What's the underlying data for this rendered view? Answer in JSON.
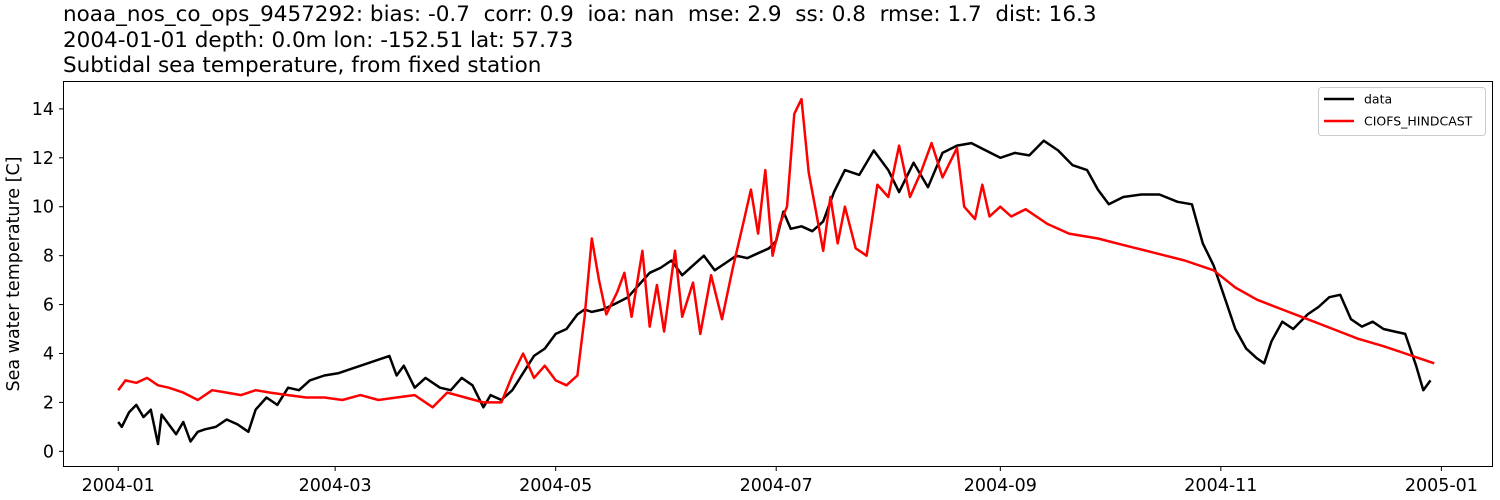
{
  "title_lines": [
    "noaa_nos_co_ops_9457292: bias: -0.7  corr: 0.9  ioa: nan  mse: 2.9  ss: 0.8  rmse: 1.7  dist: 16.3",
    "2004-01-01 depth: 0.0m lon: -152.51 lat: 57.73",
    "Subtidal sea temperature, from fixed station"
  ],
  "chart_data": {
    "type": "line",
    "title": "noaa_nos_co_ops_9457292: bias: -0.7  corr: 0.9  ioa: nan  mse: 2.9  ss: 0.8  rmse: 1.7  dist: 16.3",
    "subtitle": [
      "2004-01-01 depth: 0.0m lon: -152.51 lat: 57.73",
      "Subtidal sea temperature, from fixed station"
    ],
    "xlabel": "",
    "ylabel": "Sea water temperature [C]",
    "x_type": "date",
    "xlim": [
      "2003-12-17",
      "2005-01-15"
    ],
    "ylim": [
      -0.6,
      15.1
    ],
    "x_ticks": [
      "2004-01",
      "2004-03",
      "2004-05",
      "2004-07",
      "2004-09",
      "2004-11",
      "2005-01"
    ],
    "x_tick_dates": [
      "2004-01-01",
      "2004-03-01",
      "2004-05-01",
      "2004-07-01",
      "2004-09-01",
      "2004-11-01",
      "2005-01-01"
    ],
    "y_ticks": [
      0,
      2,
      4,
      6,
      8,
      10,
      12,
      14
    ],
    "grid": false,
    "legend_position": "top-right",
    "series": [
      {
        "name": "data",
        "color": "#000000",
        "points": [
          [
            "2004-01-01",
            1.2
          ],
          [
            "2004-01-02",
            1.0
          ],
          [
            "2004-01-04",
            1.6
          ],
          [
            "2004-01-06",
            1.9
          ],
          [
            "2004-01-08",
            1.4
          ],
          [
            "2004-01-10",
            1.7
          ],
          [
            "2004-01-12",
            0.3
          ],
          [
            "2004-01-13",
            1.5
          ],
          [
            "2004-01-15",
            1.1
          ],
          [
            "2004-01-17",
            0.7
          ],
          [
            "2004-01-19",
            1.2
          ],
          [
            "2004-01-21",
            0.4
          ],
          [
            "2004-01-23",
            0.8
          ],
          [
            "2004-01-25",
            0.9
          ],
          [
            "2004-01-28",
            1.0
          ],
          [
            "2004-01-31",
            1.3
          ],
          [
            "2004-02-03",
            1.1
          ],
          [
            "2004-02-06",
            0.8
          ],
          [
            "2004-02-08",
            1.7
          ],
          [
            "2004-02-11",
            2.2
          ],
          [
            "2004-02-14",
            1.9
          ],
          [
            "2004-02-17",
            2.6
          ],
          [
            "2004-02-20",
            2.5
          ],
          [
            "2004-02-23",
            2.9
          ],
          [
            "2004-02-27",
            3.1
          ],
          [
            "2004-03-02",
            3.2
          ],
          [
            "2004-03-06",
            3.4
          ],
          [
            "2004-03-10",
            3.6
          ],
          [
            "2004-03-14",
            3.8
          ],
          [
            "2004-03-16",
            3.9
          ],
          [
            "2004-03-18",
            3.1
          ],
          [
            "2004-03-20",
            3.5
          ],
          [
            "2004-03-23",
            2.6
          ],
          [
            "2004-03-26",
            3.0
          ],
          [
            "2004-03-30",
            2.6
          ],
          [
            "2004-04-02",
            2.5
          ],
          [
            "2004-04-05",
            3.0
          ],
          [
            "2004-04-08",
            2.7
          ],
          [
            "2004-04-11",
            1.8
          ],
          [
            "2004-04-13",
            2.3
          ],
          [
            "2004-04-16",
            2.1
          ],
          [
            "2004-04-19",
            2.5
          ],
          [
            "2004-04-22",
            3.2
          ],
          [
            "2004-04-25",
            3.9
          ],
          [
            "2004-04-28",
            4.2
          ],
          [
            "2004-05-01",
            4.8
          ],
          [
            "2004-05-04",
            5.0
          ],
          [
            "2004-05-07",
            5.6
          ],
          [
            "2004-05-09",
            5.8
          ],
          [
            "2004-05-11",
            5.7
          ],
          [
            "2004-05-14",
            5.8
          ],
          [
            "2004-05-17",
            6.0
          ],
          [
            "2004-05-21",
            6.3
          ],
          [
            "2004-05-24",
            6.8
          ],
          [
            "2004-05-27",
            7.3
          ],
          [
            "2004-05-30",
            7.5
          ],
          [
            "2004-06-02",
            7.8
          ],
          [
            "2004-06-05",
            7.2
          ],
          [
            "2004-06-08",
            7.6
          ],
          [
            "2004-06-11",
            8.0
          ],
          [
            "2004-06-14",
            7.4
          ],
          [
            "2004-06-17",
            7.7
          ],
          [
            "2004-06-20",
            8.0
          ],
          [
            "2004-06-23",
            7.9
          ],
          [
            "2004-06-26",
            8.1
          ],
          [
            "2004-06-29",
            8.3
          ],
          [
            "2004-07-01",
            8.6
          ],
          [
            "2004-07-03",
            9.8
          ],
          [
            "2004-07-05",
            9.1
          ],
          [
            "2004-07-08",
            9.2
          ],
          [
            "2004-07-11",
            9.0
          ],
          [
            "2004-07-14",
            9.4
          ],
          [
            "2004-07-17",
            10.6
          ],
          [
            "2004-07-20",
            11.5
          ],
          [
            "2004-07-24",
            11.3
          ],
          [
            "2004-07-28",
            12.3
          ],
          [
            "2004-08-01",
            11.5
          ],
          [
            "2004-08-04",
            10.6
          ],
          [
            "2004-08-08",
            11.8
          ],
          [
            "2004-08-12",
            10.8
          ],
          [
            "2004-08-16",
            12.2
          ],
          [
            "2004-08-20",
            12.5
          ],
          [
            "2004-08-24",
            12.6
          ],
          [
            "2004-08-28",
            12.3
          ],
          [
            "2004-09-01",
            12.0
          ],
          [
            "2004-09-05",
            12.2
          ],
          [
            "2004-09-09",
            12.1
          ],
          [
            "2004-09-13",
            12.7
          ],
          [
            "2004-09-17",
            12.3
          ],
          [
            "2004-09-21",
            11.7
          ],
          [
            "2004-09-25",
            11.5
          ],
          [
            "2004-09-28",
            10.7
          ],
          [
            "2004-10-01",
            10.1
          ],
          [
            "2004-10-05",
            10.4
          ],
          [
            "2004-10-10",
            10.5
          ],
          [
            "2004-10-15",
            10.5
          ],
          [
            "2004-10-20",
            10.2
          ],
          [
            "2004-10-24",
            10.1
          ],
          [
            "2004-10-27",
            8.5
          ],
          [
            "2004-10-30",
            7.6
          ],
          [
            "2004-11-02",
            6.3
          ],
          [
            "2004-11-05",
            5.0
          ],
          [
            "2004-11-08",
            4.2
          ],
          [
            "2004-11-11",
            3.8
          ],
          [
            "2004-11-13",
            3.6
          ],
          [
            "2004-11-15",
            4.5
          ],
          [
            "2004-11-18",
            5.3
          ],
          [
            "2004-11-21",
            5.0
          ],
          [
            "2004-11-25",
            5.6
          ],
          [
            "2004-11-28",
            5.9
          ],
          [
            "2004-12-01",
            6.3
          ],
          [
            "2004-12-04",
            6.4
          ],
          [
            "2004-12-07",
            5.4
          ],
          [
            "2004-12-10",
            5.1
          ],
          [
            "2004-12-13",
            5.3
          ],
          [
            "2004-12-16",
            5.0
          ],
          [
            "2004-12-19",
            4.9
          ],
          [
            "2004-12-22",
            4.8
          ],
          [
            "2004-12-25",
            3.5
          ],
          [
            "2004-12-27",
            2.5
          ],
          [
            "2004-12-29",
            2.9
          ]
        ]
      },
      {
        "name": "CIOFS_HINDCAST",
        "color": "#ff0000",
        "points": [
          [
            "2004-01-01",
            2.5
          ],
          [
            "2004-01-03",
            2.9
          ],
          [
            "2004-01-06",
            2.8
          ],
          [
            "2004-01-09",
            3.0
          ],
          [
            "2004-01-12",
            2.7
          ],
          [
            "2004-01-15",
            2.6
          ],
          [
            "2004-01-19",
            2.4
          ],
          [
            "2004-01-23",
            2.1
          ],
          [
            "2004-01-27",
            2.5
          ],
          [
            "2004-01-31",
            2.4
          ],
          [
            "2004-02-04",
            2.3
          ],
          [
            "2004-02-08",
            2.5
          ],
          [
            "2004-02-12",
            2.4
          ],
          [
            "2004-02-17",
            2.3
          ],
          [
            "2004-02-22",
            2.2
          ],
          [
            "2004-02-27",
            2.2
          ],
          [
            "2004-03-03",
            2.1
          ],
          [
            "2004-03-08",
            2.3
          ],
          [
            "2004-03-13",
            2.1
          ],
          [
            "2004-03-18",
            2.2
          ],
          [
            "2004-03-23",
            2.3
          ],
          [
            "2004-03-28",
            1.8
          ],
          [
            "2004-04-01",
            2.4
          ],
          [
            "2004-04-06",
            2.2
          ],
          [
            "2004-04-11",
            2.0
          ],
          [
            "2004-04-16",
            2.0
          ],
          [
            "2004-04-19",
            3.1
          ],
          [
            "2004-04-22",
            4.0
          ],
          [
            "2004-04-25",
            3.0
          ],
          [
            "2004-04-28",
            3.5
          ],
          [
            "2004-05-01",
            2.9
          ],
          [
            "2004-05-04",
            2.7
          ],
          [
            "2004-05-07",
            3.1
          ],
          [
            "2004-05-09",
            5.5
          ],
          [
            "2004-05-11",
            8.7
          ],
          [
            "2004-05-13",
            7.0
          ],
          [
            "2004-05-15",
            5.6
          ],
          [
            "2004-05-18",
            6.5
          ],
          [
            "2004-05-20",
            7.3
          ],
          [
            "2004-05-22",
            5.5
          ],
          [
            "2004-05-25",
            8.2
          ],
          [
            "2004-05-27",
            5.1
          ],
          [
            "2004-05-29",
            6.8
          ],
          [
            "2004-05-31",
            4.9
          ],
          [
            "2004-06-03",
            8.2
          ],
          [
            "2004-06-05",
            5.5
          ],
          [
            "2004-06-08",
            6.9
          ],
          [
            "2004-06-10",
            4.8
          ],
          [
            "2004-06-13",
            7.2
          ],
          [
            "2004-06-16",
            5.4
          ],
          [
            "2004-06-19",
            7.5
          ],
          [
            "2004-06-22",
            9.4
          ],
          [
            "2004-06-24",
            10.7
          ],
          [
            "2004-06-26",
            8.9
          ],
          [
            "2004-06-28",
            11.5
          ],
          [
            "2004-06-30",
            8.0
          ],
          [
            "2004-07-02",
            9.3
          ],
          [
            "2004-07-04",
            10.0
          ],
          [
            "2004-07-06",
            13.8
          ],
          [
            "2004-07-08",
            14.4
          ],
          [
            "2004-07-10",
            11.4
          ],
          [
            "2004-07-12",
            9.8
          ],
          [
            "2004-07-14",
            8.2
          ],
          [
            "2004-07-16",
            10.4
          ],
          [
            "2004-07-18",
            8.5
          ],
          [
            "2004-07-20",
            10.0
          ],
          [
            "2004-07-23",
            8.3
          ],
          [
            "2004-07-26",
            8.0
          ],
          [
            "2004-07-29",
            10.9
          ],
          [
            "2004-08-01",
            10.4
          ],
          [
            "2004-08-04",
            12.5
          ],
          [
            "2004-08-07",
            10.4
          ],
          [
            "2004-08-10",
            11.4
          ],
          [
            "2004-08-13",
            12.6
          ],
          [
            "2004-08-16",
            11.2
          ],
          [
            "2004-08-20",
            12.4
          ],
          [
            "2004-08-22",
            10.0
          ],
          [
            "2004-08-25",
            9.5
          ],
          [
            "2004-08-27",
            10.9
          ],
          [
            "2004-08-29",
            9.6
          ],
          [
            "2004-09-01",
            10.0
          ],
          [
            "2004-09-04",
            9.6
          ],
          [
            "2004-09-08",
            9.9
          ],
          [
            "2004-09-14",
            9.3
          ],
          [
            "2004-09-20",
            8.9
          ],
          [
            "2004-09-28",
            8.7
          ],
          [
            "2004-10-06",
            8.4
          ],
          [
            "2004-10-14",
            8.1
          ],
          [
            "2004-10-22",
            7.8
          ],
          [
            "2004-10-30",
            7.4
          ],
          [
            "2004-11-05",
            6.7
          ],
          [
            "2004-11-11",
            6.2
          ],
          [
            "2004-11-18",
            5.8
          ],
          [
            "2004-11-25",
            5.4
          ],
          [
            "2004-12-02",
            5.0
          ],
          [
            "2004-12-09",
            4.6
          ],
          [
            "2004-12-16",
            4.3
          ],
          [
            "2004-12-22",
            4.0
          ],
          [
            "2004-12-26",
            3.8
          ],
          [
            "2004-12-30",
            3.6
          ]
        ]
      }
    ]
  }
}
